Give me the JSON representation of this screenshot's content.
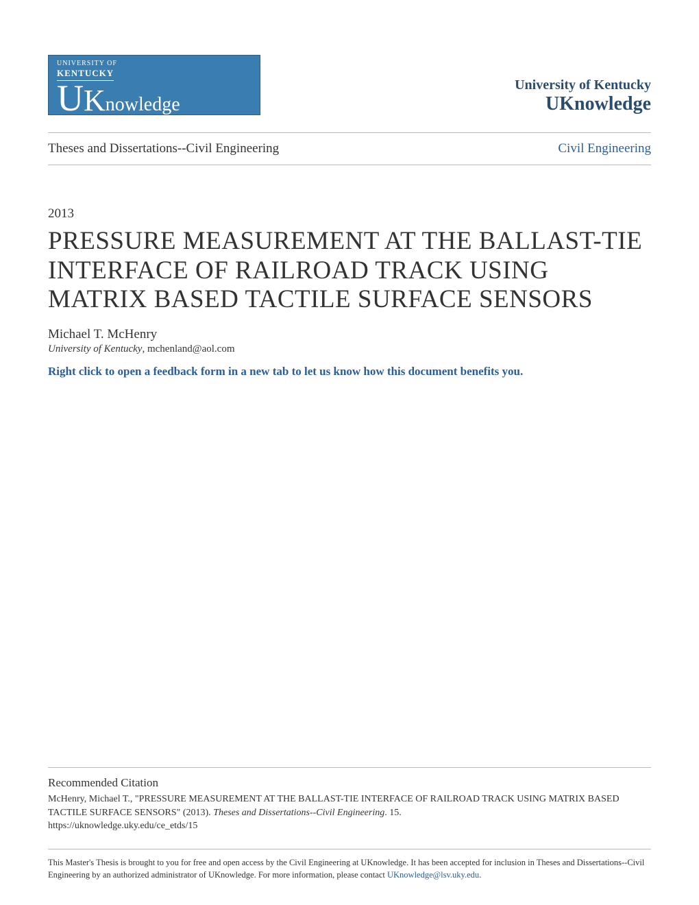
{
  "logo": {
    "top_line": "UNIVERSITY OF",
    "sub_line": "KENTUCKY",
    "main_u": "U",
    "main_k": "K",
    "main_rest": "nowledge",
    "bg_color": "#3a7db0"
  },
  "institution": {
    "name": "University of Kentucky",
    "repo": "UKnowledge"
  },
  "breadcrumb": {
    "left": "Theses and Dissertations--Civil Engineering",
    "right": "Civil Engineering"
  },
  "year": "2013",
  "title": "PRESSURE MEASUREMENT AT THE BALLAST-TIE INTERFACE OF RAILROAD TRACK USING MATRIX BASED TACTILE SURFACE SENSORS",
  "author": "Michael T. McHenry",
  "affiliation": "University of Kentucky",
  "email": "mchenland@aol.com",
  "feedback": "Right click to open a feedback form in a new tab to let us know how this document benefits you.",
  "citation": {
    "heading": "Recommended Citation",
    "text_pre": "McHenry, Michael T., \"PRESSURE MEASUREMENT AT THE BALLAST-TIE INTERFACE OF RAILROAD TRACK USING MATRIX BASED TACTILE SURFACE SENSORS\" (2013). ",
    "text_italic": "Theses and Dissertations--Civil Engineering",
    "text_post": ". 15.",
    "url": "https://uknowledge.uky.edu/ce_etds/15"
  },
  "footer": {
    "text_pre": "This Master's Thesis is brought to you for free and open access by the Civil Engineering at UKnowledge. It has been accepted for inclusion in Theses and Dissertations--Civil Engineering by an authorized administrator of UKnowledge. For more information, please contact ",
    "link": "UKnowledge@lsv.uky.edu",
    "text_post": "."
  },
  "colors": {
    "link_blue": "#2a5d9e",
    "heading_navy": "#2a4d6e",
    "body_text": "#333333",
    "rule_gray": "#bbbbbb"
  },
  "typography": {
    "title_fontsize": 37,
    "body_fontsize": 17,
    "footer_fontsize": 12.5
  }
}
